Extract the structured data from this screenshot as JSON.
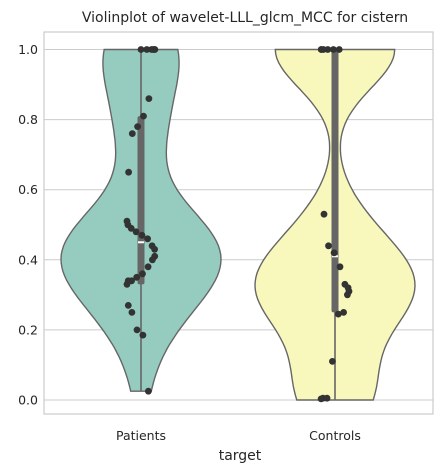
{
  "chart_data": {
    "type": "violin",
    "title": "Violinplot of wavelet-LLL_glcm_MCC for cistern",
    "xlabel": "target",
    "ylabel": "",
    "ylim": [
      -0.04,
      1.05
    ],
    "yticks": [
      0.0,
      0.2,
      0.4,
      0.6,
      0.8,
      1.0
    ],
    "ytick_labels": [
      "0.0",
      "0.2",
      "0.4",
      "0.6",
      "0.8",
      "1.0"
    ],
    "grid": "horizontal",
    "categories": [
      "Patients",
      "Controls"
    ],
    "colors": [
      "#96ccc0",
      "#f8f8bc"
    ],
    "series": [
      {
        "category": "Patients",
        "min": 0.025,
        "max": 1.0,
        "q1": 0.33,
        "median": 0.45,
        "q3": 0.81,
        "points": [
          1.0,
          1.0,
          1.0,
          1.0,
          1.0,
          1.0,
          0.86,
          0.81,
          0.78,
          0.76,
          0.65,
          0.51,
          0.5,
          0.49,
          0.48,
          0.47,
          0.46,
          0.44,
          0.43,
          0.41,
          0.4,
          0.38,
          0.36,
          0.35,
          0.34,
          0.34,
          0.33,
          0.27,
          0.25,
          0.2,
          0.185,
          0.025
        ]
      },
      {
        "category": "Controls",
        "min": 0.0,
        "max": 1.0,
        "q1": 0.25,
        "median": 0.41,
        "q3": 1.0,
        "points": [
          1.0,
          1.0,
          1.0,
          1.0,
          1.0,
          1.0,
          0.53,
          0.44,
          0.42,
          0.38,
          0.33,
          0.32,
          0.31,
          0.3,
          0.25,
          0.245,
          0.11,
          0.005,
          0.005,
          0.003
        ]
      }
    ]
  }
}
